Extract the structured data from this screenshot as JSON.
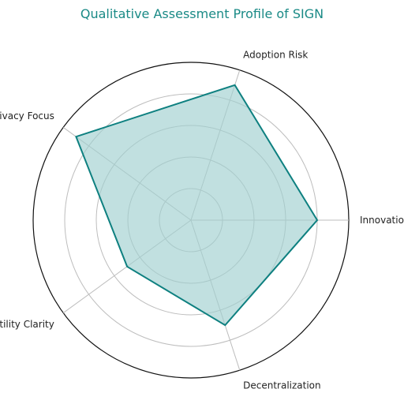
{
  "chart_data": {
    "type": "radar",
    "title": "Qualitative Assessment Profile of SIGN",
    "categories": [
      "Innovation",
      "Adoption Risk",
      "Privacy Focus",
      "Utility Clarity",
      "Decentralization"
    ],
    "values": [
      8,
      9,
      9,
      5,
      7
    ],
    "rmax": 10,
    "rings": [
      2,
      4,
      6,
      8,
      10
    ],
    "grid": true,
    "colors": {
      "line": "#0e8080",
      "fill": "#9fcfd0",
      "grid": "#bdbdbd",
      "title": "#1a8a86",
      "outer": "#111111"
    }
  }
}
